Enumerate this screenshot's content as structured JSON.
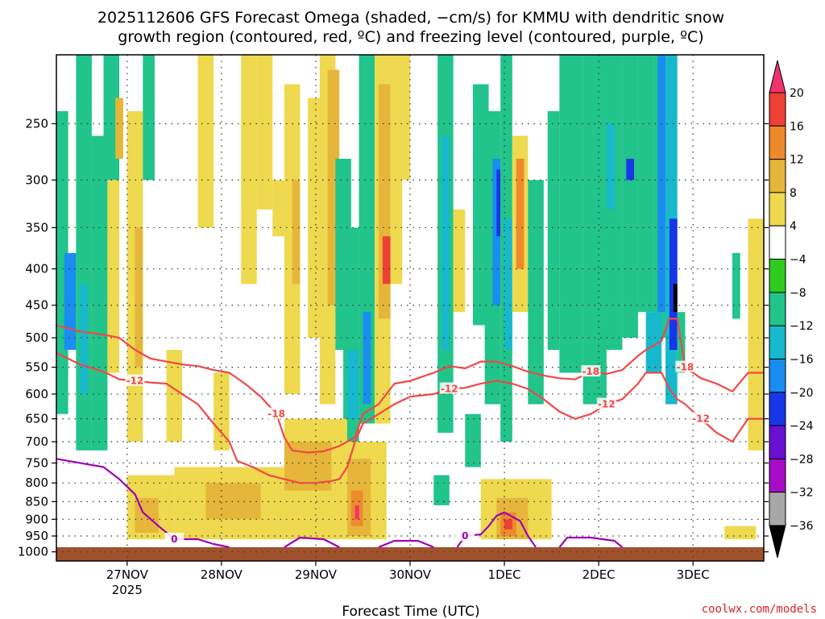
{
  "chart_data": {
    "type": "heatmap",
    "title_lines": [
      "2025112606 GFS Forecast Omega (shaded, −cm/s) for KMMU with dendritic snow",
      "growth region (contoured, red, ºC) and freezing level (contoured, purple, ºC)"
    ],
    "xlabel": "Forecast Time (UTC)",
    "credit": "coolwx.com/models",
    "x_ticks": [
      {
        "label": "27NOV",
        "sublabel": "2025",
        "t": 18
      },
      {
        "label": "28NOV",
        "sublabel": "",
        "t": 42
      },
      {
        "label": "29NOV",
        "sublabel": "",
        "t": 66
      },
      {
        "label": "30NOV",
        "sublabel": "",
        "t": 90
      },
      {
        "label": "1DEC",
        "sublabel": "",
        "t": 114
      },
      {
        "label": "2DEC",
        "sublabel": "",
        "t": 138
      },
      {
        "label": "3DEC",
        "sublabel": "",
        "t": 162
      }
    ],
    "x_range_hours": [
      0,
      180
    ],
    "y_ticks": [
      250,
      300,
      350,
      400,
      450,
      500,
      550,
      600,
      650,
      700,
      750,
      800,
      850,
      900,
      950,
      1000
    ],
    "y_range_hpa": [
      200,
      1030
    ],
    "grid": true,
    "colorbar": {
      "labels": [
        "20",
        "16",
        "12",
        "8",
        "4",
        "−4",
        "−8",
        "−12",
        "−16",
        "−20",
        "−24",
        "−28",
        "−32",
        "−36"
      ],
      "colors": [
        "#f0336e",
        "#ee4035",
        "#ee8a2c",
        "#e6b63a",
        "#eed94f",
        "#ffffff",
        "#2ecc1e",
        "#21c48a",
        "#17b8cc",
        "#1a8df0",
        "#1736e8",
        "#6a10d0",
        "#a80cc8",
        "#a8a8a8",
        "#000000"
      ]
    },
    "cells": [
      {
        "t0": 0,
        "t1": 3,
        "p0": 240,
        "p1": 640,
        "v": -8
      },
      {
        "t0": 2,
        "t1": 5,
        "p0": 380,
        "p1": 520,
        "v": -16
      },
      {
        "t0": 5,
        "t1": 9,
        "p0": 200,
        "p1": 720,
        "v": -8
      },
      {
        "t0": 6,
        "t1": 8,
        "p0": 420,
        "p1": 600,
        "v": -12
      },
      {
        "t0": 9,
        "t1": 13,
        "p0": 260,
        "p1": 720,
        "v": -8
      },
      {
        "t0": 12,
        "t1": 16,
        "p0": 200,
        "p1": 300,
        "v": -8
      },
      {
        "t0": 13,
        "t1": 16,
        "p0": 300,
        "p1": 560,
        "v": 4
      },
      {
        "t0": 18,
        "t1": 22,
        "p0": 240,
        "p1": 700,
        "v": 4
      },
      {
        "t0": 20,
        "t1": 22,
        "p0": 350,
        "p1": 550,
        "v": 8
      },
      {
        "t0": 22,
        "t1": 25,
        "p0": 200,
        "p1": 300,
        "v": -8
      },
      {
        "t0": 15,
        "t1": 17,
        "p0": 230,
        "p1": 280,
        "v": 8
      },
      {
        "t0": 36,
        "t1": 40,
        "p0": 200,
        "p1": 350,
        "v": 4
      },
      {
        "t0": 28,
        "t1": 32,
        "p0": 520,
        "p1": 700,
        "v": 4
      },
      {
        "t0": 40,
        "t1": 44,
        "p0": 560,
        "p1": 720,
        "v": 4
      },
      {
        "t0": 47,
        "t1": 51,
        "p0": 200,
        "p1": 420,
        "v": 4
      },
      {
        "t0": 51,
        "t1": 55,
        "p0": 200,
        "p1": 330,
        "v": 4
      },
      {
        "t0": 55,
        "t1": 58,
        "p0": 300,
        "p1": 360,
        "v": 4
      },
      {
        "t0": 58,
        "t1": 62,
        "p0": 220,
        "p1": 600,
        "v": 4
      },
      {
        "t0": 60,
        "t1": 62,
        "p0": 300,
        "p1": 420,
        "v": 8
      },
      {
        "t0": 64,
        "t1": 68,
        "p0": 230,
        "p1": 500,
        "v": 4
      },
      {
        "t0": 67,
        "t1": 71,
        "p0": 200,
        "p1": 620,
        "v": 4
      },
      {
        "t0": 69,
        "t1": 72,
        "p0": 210,
        "p1": 450,
        "v": 8
      },
      {
        "t0": 71,
        "t1": 75,
        "p0": 280,
        "p1": 520,
        "v": -8
      },
      {
        "t0": 73,
        "t1": 77,
        "p0": 350,
        "p1": 700,
        "v": -8
      },
      {
        "t0": 74,
        "t1": 77,
        "p0": 520,
        "p1": 650,
        "v": -12
      },
      {
        "t0": 77,
        "t1": 81,
        "p0": 200,
        "p1": 660,
        "v": -8
      },
      {
        "t0": 78,
        "t1": 80,
        "p0": 460,
        "p1": 620,
        "v": -16
      },
      {
        "t0": 81,
        "t1": 85,
        "p0": 200,
        "p1": 660,
        "v": 4
      },
      {
        "t0": 82,
        "t1": 85,
        "p0": 220,
        "p1": 470,
        "v": 8
      },
      {
        "t0": 83,
        "t1": 85,
        "p0": 360,
        "p1": 420,
        "v": 16
      },
      {
        "t0": 85,
        "t1": 88,
        "p0": 200,
        "p1": 420,
        "v": 4
      },
      {
        "t0": 88,
        "t1": 90,
        "p0": 200,
        "p1": 300,
        "v": 4
      },
      {
        "t0": 97,
        "t1": 101,
        "p0": 200,
        "p1": 680,
        "v": -8
      },
      {
        "t0": 98,
        "t1": 100,
        "p0": 260,
        "p1": 520,
        "v": -12
      },
      {
        "t0": 101,
        "t1": 104,
        "p0": 330,
        "p1": 460,
        "v": 4
      },
      {
        "t0": 106,
        "t1": 110,
        "p0": 220,
        "p1": 480,
        "v": -8
      },
      {
        "t0": 109,
        "t1": 113,
        "p0": 240,
        "p1": 620,
        "v": -8
      },
      {
        "t0": 111,
        "t1": 113,
        "p0": 280,
        "p1": 450,
        "v": -16
      },
      {
        "t0": 112,
        "t1": 113,
        "p0": 290,
        "p1": 360,
        "v": -20
      },
      {
        "t0": 113,
        "t1": 116,
        "p0": 200,
        "p1": 700,
        "v": -8
      },
      {
        "t0": 114,
        "t1": 116,
        "p0": 340,
        "p1": 520,
        "v": -12
      },
      {
        "t0": 116,
        "t1": 120,
        "p0": 260,
        "p1": 460,
        "v": 4
      },
      {
        "t0": 117,
        "t1": 119,
        "p0": 280,
        "p1": 400,
        "v": 12
      },
      {
        "t0": 120,
        "t1": 124,
        "p0": 300,
        "p1": 620,
        "v": -8
      },
      {
        "t0": 125,
        "t1": 128,
        "p0": 240,
        "p1": 520,
        "v": -8
      },
      {
        "t0": 128,
        "t1": 134,
        "p0": 200,
        "p1": 560,
        "v": -8
      },
      {
        "t0": 134,
        "t1": 140,
        "p0": 200,
        "p1": 620,
        "v": -8
      },
      {
        "t0": 138,
        "t1": 144,
        "p0": 200,
        "p1": 520,
        "v": -8
      },
      {
        "t0": 140,
        "t1": 142,
        "p0": 250,
        "p1": 330,
        "v": -12
      },
      {
        "t0": 144,
        "t1": 148,
        "p0": 200,
        "p1": 500,
        "v": -8
      },
      {
        "t0": 145,
        "t1": 147,
        "p0": 280,
        "p1": 300,
        "v": -20
      },
      {
        "t0": 148,
        "t1": 152,
        "p0": 200,
        "p1": 460,
        "v": -8
      },
      {
        "t0": 152,
        "t1": 155,
        "p0": 200,
        "p1": 500,
        "v": -8
      },
      {
        "t0": 153,
        "t1": 155,
        "p0": 200,
        "p1": 460,
        "v": -16
      },
      {
        "t0": 155,
        "t1": 158,
        "p0": 200,
        "p1": 620,
        "v": -12
      },
      {
        "t0": 156,
        "t1": 158,
        "p0": 340,
        "p1": 520,
        "v": -20
      },
      {
        "t0": 157,
        "t1": 158,
        "p0": 420,
        "p1": 460,
        "v": -36
      },
      {
        "t0": 150,
        "t1": 154,
        "p0": 460,
        "p1": 560,
        "v": -12
      },
      {
        "t0": 158,
        "t1": 160,
        "p0": 460,
        "p1": 560,
        "v": -8
      },
      {
        "t0": 172,
        "t1": 174,
        "p0": 380,
        "p1": 470,
        "v": -8
      },
      {
        "t0": 176,
        "t1": 180,
        "p0": 340,
        "p1": 720,
        "v": 4
      },
      {
        "t0": 18,
        "t1": 30,
        "p0": 780,
        "p1": 960,
        "v": 4
      },
      {
        "t0": 30,
        "t1": 58,
        "p0": 760,
        "p1": 960,
        "v": 4
      },
      {
        "t0": 58,
        "t1": 74,
        "p0": 650,
        "p1": 960,
        "v": 4
      },
      {
        "t0": 74,
        "t1": 84,
        "p0": 700,
        "p1": 960,
        "v": 4
      },
      {
        "t0": 20,
        "t1": 26,
        "p0": 840,
        "p1": 940,
        "v": 8
      },
      {
        "t0": 38,
        "t1": 52,
        "p0": 800,
        "p1": 900,
        "v": 8
      },
      {
        "t0": 58,
        "t1": 70,
        "p0": 700,
        "p1": 820,
        "v": 8
      },
      {
        "t0": 74,
        "t1": 80,
        "p0": 740,
        "p1": 950,
        "v": 8
      },
      {
        "t0": 75,
        "t1": 78,
        "p0": 820,
        "p1": 920,
        "v": 12
      },
      {
        "t0": 76,
        "t1": 77,
        "p0": 860,
        "p1": 900,
        "v": 20
      },
      {
        "t0": 108,
        "t1": 126,
        "p0": 790,
        "p1": 960,
        "v": 4
      },
      {
        "t0": 112,
        "t1": 120,
        "p0": 840,
        "p1": 960,
        "v": 8
      },
      {
        "t0": 113,
        "t1": 117,
        "p0": 880,
        "p1": 950,
        "v": 12
      },
      {
        "t0": 114,
        "t1": 116,
        "p0": 900,
        "p1": 930,
        "v": 16
      },
      {
        "t0": 96,
        "t1": 100,
        "p0": 780,
        "p1": 860,
        "v": -8
      },
      {
        "t0": 104,
        "t1": 108,
        "p0": 640,
        "p1": 760,
        "v": -8
      },
      {
        "t0": 170,
        "t1": 178,
        "p0": 920,
        "p1": 960,
        "v": 4
      }
    ],
    "surface": {
      "p_top": 985,
      "color": "#a0522d"
    },
    "contours": [
      {
        "name": "-18",
        "color": "#f04848",
        "label": "-18",
        "points": [
          [
            0,
            480
          ],
          [
            6,
            490
          ],
          [
            12,
            495
          ],
          [
            16,
            500
          ],
          [
            20,
            520
          ],
          [
            24,
            535
          ],
          [
            28,
            540
          ],
          [
            32,
            545
          ],
          [
            36,
            548
          ],
          [
            40,
            555
          ],
          [
            44,
            560
          ],
          [
            48,
            580
          ],
          [
            52,
            605
          ],
          [
            56,
            640
          ],
          [
            58,
            690
          ],
          [
            60,
            720
          ],
          [
            64,
            725
          ],
          [
            68,
            722
          ],
          [
            72,
            710
          ],
          [
            76,
            690
          ],
          [
            78,
            640
          ],
          [
            82,
            620
          ],
          [
            86,
            580
          ],
          [
            90,
            575
          ],
          [
            96,
            560
          ],
          [
            100,
            548
          ],
          [
            104,
            552
          ],
          [
            108,
            540
          ],
          [
            112,
            540
          ],
          [
            116,
            548
          ],
          [
            120,
            558
          ],
          [
            124,
            565
          ],
          [
            128,
            570
          ],
          [
            132,
            572
          ],
          [
            136,
            558
          ],
          [
            140,
            562
          ],
          [
            144,
            555
          ],
          [
            148,
            530
          ],
          [
            150,
            520
          ],
          [
            154,
            505
          ],
          [
            156,
            470
          ],
          [
            158,
            470
          ],
          [
            160,
            550
          ],
          [
            164,
            570
          ],
          [
            168,
            580
          ],
          [
            172,
            595
          ],
          [
            176,
            560
          ],
          [
            180,
            560
          ]
        ],
        "label_t": [
          56,
          136,
          160
        ]
      },
      {
        "name": "-12",
        "color": "#f04848",
        "label": "-12",
        "points": [
          [
            0,
            525
          ],
          [
            6,
            545
          ],
          [
            12,
            558
          ],
          [
            16,
            572
          ],
          [
            20,
            575
          ],
          [
            24,
            578
          ],
          [
            28,
            580
          ],
          [
            32,
            600
          ],
          [
            36,
            620
          ],
          [
            40,
            660
          ],
          [
            44,
            700
          ],
          [
            46,
            745
          ],
          [
            50,
            760
          ],
          [
            54,
            780
          ],
          [
            58,
            790
          ],
          [
            62,
            800
          ],
          [
            66,
            800
          ],
          [
            70,
            795
          ],
          [
            72,
            790
          ],
          [
            74,
            760
          ],
          [
            76,
            700
          ],
          [
            78,
            660
          ],
          [
            82,
            640
          ],
          [
            86,
            620
          ],
          [
            90,
            605
          ],
          [
            96,
            600
          ],
          [
            100,
            590
          ],
          [
            104,
            588
          ],
          [
            108,
            580
          ],
          [
            112,
            575
          ],
          [
            116,
            580
          ],
          [
            120,
            590
          ],
          [
            124,
            610
          ],
          [
            128,
            635
          ],
          [
            132,
            650
          ],
          [
            136,
            640
          ],
          [
            140,
            620
          ],
          [
            144,
            610
          ],
          [
            148,
            580
          ],
          [
            150,
            560
          ],
          [
            154,
            560
          ],
          [
            156,
            590
          ],
          [
            158,
            610
          ],
          [
            160,
            620
          ],
          [
            164,
            650
          ],
          [
            168,
            680
          ],
          [
            172,
            700
          ],
          [
            176,
            650
          ],
          [
            180,
            650
          ]
        ],
        "label_t": [
          20,
          100,
          140,
          164
        ]
      },
      {
        "name": "0",
        "color": "#a000b4",
        "label": "0",
        "points": [
          [
            0,
            740
          ],
          [
            6,
            750
          ],
          [
            12,
            760
          ],
          [
            16,
            790
          ],
          [
            20,
            830
          ],
          [
            22,
            880
          ],
          [
            26,
            920
          ],
          [
            30,
            960
          ],
          [
            36,
            960
          ],
          [
            40,
            975
          ],
          [
            44,
            985
          ]
        ],
        "label_t": [
          31
        ]
      },
      {
        "name": "0b",
        "color": "#a000b4",
        "label": "",
        "points": [
          [
            58,
            985
          ],
          [
            62,
            955
          ],
          [
            68,
            960
          ],
          [
            72,
            985
          ]
        ],
        "label_t": []
      },
      {
        "name": "0c",
        "color": "#a000b4",
        "label": "",
        "points": [
          [
            82,
            985
          ],
          [
            86,
            965
          ],
          [
            92,
            965
          ],
          [
            96,
            985
          ]
        ],
        "label_t": []
      },
      {
        "name": "0d",
        "color": "#a000b4",
        "label": "0",
        "points": [
          [
            102,
            985
          ],
          [
            104,
            950
          ],
          [
            108,
            945
          ],
          [
            110,
            920
          ],
          [
            112,
            890
          ],
          [
            114,
            880
          ],
          [
            118,
            905
          ],
          [
            120,
            950
          ],
          [
            122,
            985
          ]
        ],
        "label_t": [
          106
        ]
      },
      {
        "name": "0e",
        "color": "#a000b4",
        "label": "",
        "points": [
          [
            128,
            985
          ],
          [
            130,
            955
          ],
          [
            136,
            955
          ],
          [
            142,
            965
          ],
          [
            144,
            985
          ]
        ],
        "label_t": []
      }
    ]
  }
}
